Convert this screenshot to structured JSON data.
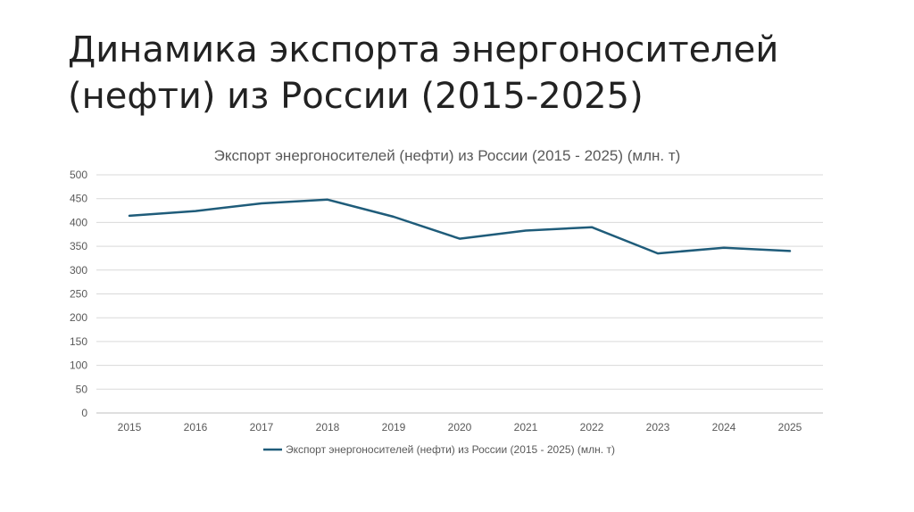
{
  "slide": {
    "title_line1": "Динамика экспорта энергоносителей",
    "title_line2": "(нефти) из России (2015-2025)"
  },
  "chart_data": {
    "type": "line",
    "title": "Экспорт энергоносителей (нефти) из России (2015 - 2025) (млн. т)",
    "categories": [
      "2015",
      "2016",
      "2017",
      "2018",
      "2019",
      "2020",
      "2021",
      "2022",
      "2023",
      "2024",
      "2025"
    ],
    "series": [
      {
        "name": "Экспорт энергоносителей (нефти) из России (2015 - 2025) (млн. т)",
        "values": [
          414,
          424,
          440,
          448,
          412,
          366,
          383,
          390,
          335,
          347,
          340
        ],
        "color": "#1f5c7a"
      }
    ],
    "ylim": [
      0,
      500
    ],
    "yticks": [
      "0",
      "50",
      "100",
      "150",
      "200",
      "250",
      "300",
      "350",
      "400",
      "450",
      "500"
    ],
    "grid": true,
    "legend": "bottom"
  }
}
